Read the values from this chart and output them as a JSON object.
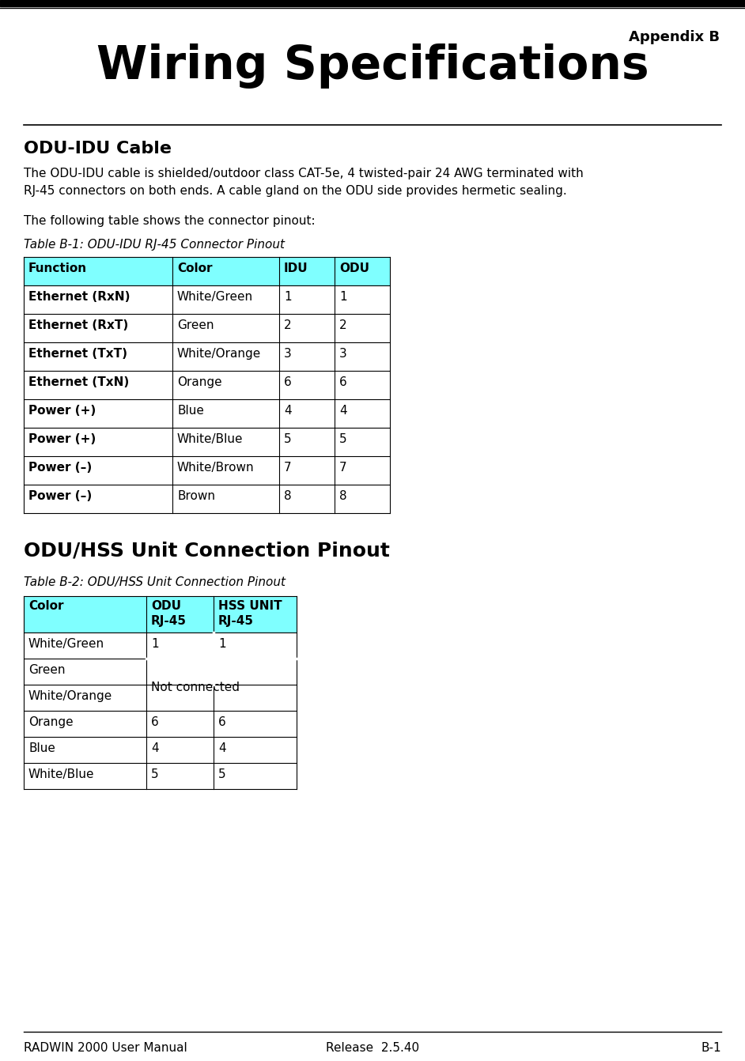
{
  "page_title_small": "Appendix B",
  "page_title_large": "Wiring Specifications",
  "section1_title": "ODU-IDU Cable",
  "section1_body1": "The ODU-IDU cable is shielded/outdoor class CAT-5e, 4 twisted-pair 24 AWG terminated with\nRJ-45 connectors on both ends. A cable gland on the ODU side provides hermetic sealing.",
  "section1_body2": "The following table shows the connector pinout:",
  "table1_caption": "Table B-1: ODU-IDU RJ-45 Connector Pinout",
  "table1_header": [
    "Function",
    "Color",
    "IDU",
    "ODU"
  ],
  "table1_header_bg": "#7fffff",
  "table1_rows": [
    [
      "Ethernet (RxN)",
      "White/Green",
      "1",
      "1"
    ],
    [
      "Ethernet (RxT)",
      "Green",
      "2",
      "2"
    ],
    [
      "Ethernet (TxT)",
      "White/Orange",
      "3",
      "3"
    ],
    [
      "Ethernet (TxN)",
      "Orange",
      "6",
      "6"
    ],
    [
      "Power (+)",
      "Blue",
      "4",
      "4"
    ],
    [
      "Power (+)",
      "White/Blue",
      "5",
      "5"
    ],
    [
      "Power (–)",
      "White/Brown",
      "7",
      "7"
    ],
    [
      "Power (–)",
      "Brown",
      "8",
      "8"
    ]
  ],
  "section2_title": "ODU/HSS Unit Connection Pinout",
  "table2_caption": "Table B-2: ODU/HSS Unit Connection Pinout",
  "table2_header": [
    "Color",
    "ODU\nRJ-45",
    "HSS UNIT\nRJ-45"
  ],
  "table2_header_bg": "#7fffff",
  "footer_left": "RADWIN 2000 User Manual",
  "footer_center": "Release  2.5.40",
  "footer_right": "B-1",
  "bg_color": "#ffffff"
}
